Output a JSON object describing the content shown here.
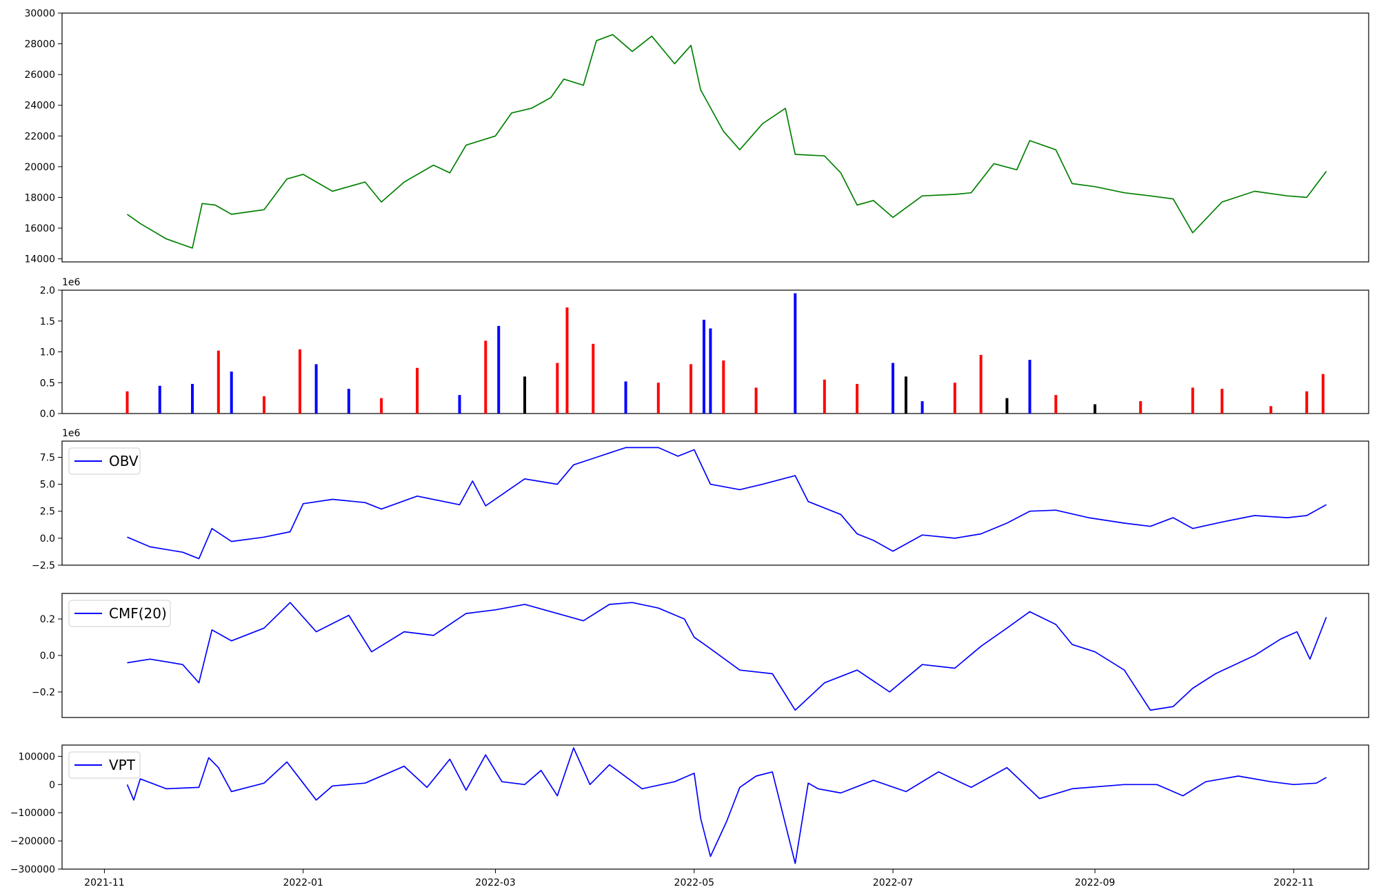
{
  "chart_data": [
    {
      "type": "line",
      "title": "",
      "xlabel": "",
      "ylabel": "",
      "ylim": [
        13800,
        30000
      ],
      "yticks": [
        14000,
        16000,
        18000,
        20000,
        22000,
        24000,
        26000,
        28000,
        30000
      ],
      "grid": false,
      "color": "#008000",
      "series": [
        {
          "x": [
            "2021-11-08",
            "2021-11-12",
            "2021-11-20",
            "2021-11-28",
            "2021-12-01",
            "2021-12-05",
            "2021-12-10",
            "2021-12-20",
            "2021-12-27",
            "2022-01-01",
            "2022-01-10",
            "2022-01-20",
            "2022-01-25",
            "2022-02-01",
            "2022-02-10",
            "2022-02-15",
            "2022-02-20",
            "2022-03-01",
            "2022-03-06",
            "2022-03-12",
            "2022-03-18",
            "2022-03-22",
            "2022-03-28",
            "2022-04-01",
            "2022-04-06",
            "2022-04-12",
            "2022-04-18",
            "2022-04-25",
            "2022-04-30",
            "2022-05-03",
            "2022-05-10",
            "2022-05-15",
            "2022-05-22",
            "2022-05-29",
            "2022-06-01",
            "2022-06-10",
            "2022-06-15",
            "2022-06-20",
            "2022-06-25",
            "2022-07-01",
            "2022-07-10",
            "2022-07-20",
            "2022-07-25",
            "2022-08-01",
            "2022-08-08",
            "2022-08-12",
            "2022-08-20",
            "2022-08-25",
            "2022-09-01",
            "2022-09-10",
            "2022-09-18",
            "2022-09-25",
            "2022-10-01",
            "2022-10-10",
            "2022-10-20",
            "2022-10-30",
            "2022-11-05",
            "2022-11-11"
          ],
          "y": [
            16900,
            16300,
            15300,
            14700,
            17600,
            17500,
            16900,
            17200,
            19200,
            19500,
            18400,
            19000,
            17700,
            19000,
            20100,
            19600,
            21400,
            22000,
            23500,
            23800,
            24500,
            25700,
            25300,
            28200,
            28600,
            27500,
            28500,
            26700,
            27900,
            25000,
            22300,
            21100,
            22800,
            23800,
            20800,
            20700,
            19600,
            17500,
            17800,
            16700,
            18100,
            18200,
            18300,
            20200,
            19800,
            21700,
            21100,
            18900,
            18700,
            18300,
            18100,
            17900,
            15700,
            17700,
            18400,
            18100,
            18000,
            19700
          ]
        }
      ]
    },
    {
      "type": "bar",
      "title": "",
      "xlabel": "",
      "ylabel": "",
      "scale_label": "1e6",
      "ylim": [
        0,
        2.0
      ],
      "yticks": [
        0.0,
        0.5,
        1.0,
        1.5,
        2.0
      ],
      "grid": false,
      "colors": {
        "up": "#ff0000",
        "down": "#0000ff",
        "flat": "#000000"
      },
      "series": [
        {
          "x": [
            "2021-11-08",
            "2021-11-18",
            "2021-11-28",
            "2021-12-06",
            "2021-12-10",
            "2021-12-20",
            "2021-12-31",
            "2022-01-05",
            "2022-01-15",
            "2022-01-25",
            "2022-02-05",
            "2022-02-18",
            "2022-02-26",
            "2022-03-02",
            "2022-03-10",
            "2022-03-20",
            "2022-03-23",
            "2022-03-31",
            "2022-04-10",
            "2022-04-20",
            "2022-04-30",
            "2022-05-04",
            "2022-05-06",
            "2022-05-10",
            "2022-05-20",
            "2022-06-01",
            "2022-06-10",
            "2022-06-20",
            "2022-07-01",
            "2022-07-05",
            "2022-07-10",
            "2022-07-20",
            "2022-07-28",
            "2022-08-05",
            "2022-08-12",
            "2022-08-20",
            "2022-09-01",
            "2022-09-15",
            "2022-10-01",
            "2022-10-10",
            "2022-10-25",
            "2022-11-05",
            "2022-11-10"
          ],
          "y": [
            0.36,
            0.45,
            0.48,
            1.02,
            0.68,
            0.28,
            1.04,
            0.8,
            0.4,
            0.25,
            0.74,
            0.3,
            1.18,
            1.42,
            0.6,
            0.82,
            1.72,
            1.13,
            0.52,
            0.5,
            0.8,
            1.52,
            1.38,
            0.86,
            0.42,
            1.95,
            0.55,
            0.48,
            0.82,
            0.6,
            0.2,
            0.5,
            0.95,
            0.25,
            0.87,
            0.3,
            0.15,
            0.2,
            0.42,
            0.4,
            0.12,
            0.36,
            0.64
          ],
          "direction": [
            "up",
            "down",
            "down",
            "up",
            "down",
            "up",
            "up",
            "down",
            "down",
            "up",
            "up",
            "down",
            "up",
            "down",
            "flat",
            "up",
            "up",
            "up",
            "down",
            "up",
            "up",
            "down",
            "down",
            "up",
            "up",
            "down",
            "up",
            "up",
            "down",
            "flat",
            "down",
            "up",
            "up",
            "flat",
            "down",
            "up",
            "flat",
            "up",
            "up",
            "up",
            "up",
            "up",
            "up"
          ]
        }
      ]
    },
    {
      "type": "line",
      "title": "",
      "xlabel": "",
      "ylabel": "",
      "scale_label": "1e6",
      "ylim": [
        -2.5,
        9.0
      ],
      "yticks": [
        -2.5,
        0.0,
        2.5,
        5.0,
        7.5
      ],
      "grid": false,
      "legend": "upper left",
      "color": "#0000ff",
      "series": [
        {
          "name": "OBV",
          "x": [
            "2021-11-08",
            "2021-11-15",
            "2021-11-25",
            "2021-11-30",
            "2021-12-04",
            "2021-12-10",
            "2021-12-20",
            "2021-12-28",
            "2022-01-01",
            "2022-01-10",
            "2022-01-20",
            "2022-01-25",
            "2022-02-05",
            "2022-02-18",
            "2022-02-22",
            "2022-02-26",
            "2022-03-10",
            "2022-03-20",
            "2022-03-25",
            "2022-04-01",
            "2022-04-10",
            "2022-04-20",
            "2022-04-26",
            "2022-05-01",
            "2022-05-06",
            "2022-05-15",
            "2022-05-22",
            "2022-06-01",
            "2022-06-05",
            "2022-06-15",
            "2022-06-20",
            "2022-06-25",
            "2022-07-01",
            "2022-07-10",
            "2022-07-20",
            "2022-07-28",
            "2022-08-05",
            "2022-08-12",
            "2022-08-20",
            "2022-08-30",
            "2022-09-10",
            "2022-09-18",
            "2022-09-25",
            "2022-10-01",
            "2022-10-10",
            "2022-10-20",
            "2022-10-30",
            "2022-11-05",
            "2022-11-11"
          ],
          "y": [
            0.1,
            -0.8,
            -1.3,
            -1.9,
            0.9,
            -0.3,
            0.1,
            0.6,
            3.2,
            3.6,
            3.3,
            2.7,
            3.9,
            3.1,
            5.3,
            3.0,
            5.5,
            5.0,
            6.8,
            7.5,
            8.4,
            8.4,
            7.6,
            8.2,
            5.0,
            4.5,
            5.0,
            5.8,
            3.4,
            2.2,
            0.4,
            -0.2,
            -1.2,
            0.3,
            0.0,
            0.4,
            1.4,
            2.5,
            2.6,
            1.9,
            1.4,
            1.1,
            1.9,
            0.9,
            1.5,
            2.1,
            1.9,
            2.1,
            3.1
          ]
        }
      ]
    },
    {
      "type": "line",
      "title": "",
      "xlabel": "",
      "ylabel": "",
      "ylim": [
        -0.34,
        0.34
      ],
      "yticks": [
        -0.2,
        0.0,
        0.2
      ],
      "grid": false,
      "legend": "upper left",
      "color": "#0000ff",
      "series": [
        {
          "name": "CMF(20)",
          "x": [
            "2021-11-08",
            "2021-11-15",
            "2021-11-25",
            "2021-11-30",
            "2021-12-04",
            "2021-12-10",
            "2021-12-20",
            "2021-12-28",
            "2022-01-05",
            "2022-01-15",
            "2022-01-22",
            "2022-02-01",
            "2022-02-10",
            "2022-02-20",
            "2022-03-01",
            "2022-03-10",
            "2022-03-20",
            "2022-03-28",
            "2022-04-05",
            "2022-04-12",
            "2022-04-20",
            "2022-04-28",
            "2022-05-01",
            "2022-05-05",
            "2022-05-15",
            "2022-05-25",
            "2022-06-01",
            "2022-06-10",
            "2022-06-20",
            "2022-06-30",
            "2022-07-10",
            "2022-07-20",
            "2022-07-28",
            "2022-08-05",
            "2022-08-12",
            "2022-08-20",
            "2022-08-25",
            "2022-09-01",
            "2022-09-10",
            "2022-09-18",
            "2022-09-25",
            "2022-10-01",
            "2022-10-08",
            "2022-10-20",
            "2022-10-28",
            "2022-11-02",
            "2022-11-06",
            "2022-11-11"
          ],
          "y": [
            -0.04,
            -0.02,
            -0.05,
            -0.15,
            0.14,
            0.08,
            0.15,
            0.29,
            0.13,
            0.22,
            0.02,
            0.13,
            0.11,
            0.23,
            0.25,
            0.28,
            0.23,
            0.19,
            0.28,
            0.29,
            0.26,
            0.2,
            0.1,
            0.05,
            -0.08,
            -0.1,
            -0.3,
            -0.15,
            -0.08,
            -0.2,
            -0.05,
            -0.07,
            0.05,
            0.15,
            0.24,
            0.17,
            0.06,
            0.02,
            -0.08,
            -0.3,
            -0.28,
            -0.18,
            -0.1,
            0.0,
            0.09,
            0.13,
            -0.02,
            0.21
          ]
        }
      ]
    },
    {
      "type": "line",
      "title": "",
      "xlabel": "",
      "ylabel": "",
      "ylim": [
        -300000,
        140000
      ],
      "yticks": [
        -300000,
        -200000,
        -100000,
        0,
        100000
      ],
      "grid": false,
      "legend": "upper left",
      "color": "#0000ff",
      "series": [
        {
          "name": "VPT",
          "x": [
            "2021-11-08",
            "2021-11-10",
            "2021-11-12",
            "2021-11-20",
            "2021-11-30",
            "2021-12-03",
            "2021-12-06",
            "2021-12-10",
            "2021-12-20",
            "2021-12-27",
            "2022-01-01",
            "2022-01-05",
            "2022-01-10",
            "2022-01-20",
            "2022-02-01",
            "2022-02-08",
            "2022-02-15",
            "2022-02-20",
            "2022-02-26",
            "2022-03-03",
            "2022-03-10",
            "2022-03-15",
            "2022-03-20",
            "2022-03-25",
            "2022-03-30",
            "2022-04-05",
            "2022-04-15",
            "2022-04-25",
            "2022-05-01",
            "2022-05-03",
            "2022-05-06",
            "2022-05-11",
            "2022-05-15",
            "2022-05-20",
            "2022-05-25",
            "2022-06-01",
            "2022-06-05",
            "2022-06-08",
            "2022-06-15",
            "2022-06-25",
            "2022-07-05",
            "2022-07-15",
            "2022-07-25",
            "2022-08-05",
            "2022-08-15",
            "2022-08-25",
            "2022-09-10",
            "2022-09-20",
            "2022-09-28",
            "2022-10-05",
            "2022-10-15",
            "2022-10-25",
            "2022-11-01",
            "2022-11-08",
            "2022-11-11"
          ],
          "y": [
            0,
            -55000,
            20000,
            -15000,
            -10000,
            95000,
            60000,
            -25000,
            5000,
            80000,
            5000,
            -55000,
            -5000,
            5000,
            65000,
            -10000,
            90000,
            -20000,
            105000,
            10000,
            0,
            50000,
            -40000,
            130000,
            0,
            70000,
            -15000,
            10000,
            40000,
            -120000,
            -255000,
            -130000,
            -10000,
            30000,
            45000,
            -280000,
            5000,
            -15000,
            -30000,
            15000,
            -25000,
            45000,
            -10000,
            60000,
            -50000,
            -15000,
            0,
            0,
            -40000,
            10000,
            30000,
            10000,
            0,
            5000,
            25000
          ]
        }
      ]
    }
  ],
  "x_axis": {
    "ticks": [
      "2021-11",
      "2022-01",
      "2022-03",
      "2022-05",
      "2022-07",
      "2022-09",
      "2022-11"
    ]
  }
}
